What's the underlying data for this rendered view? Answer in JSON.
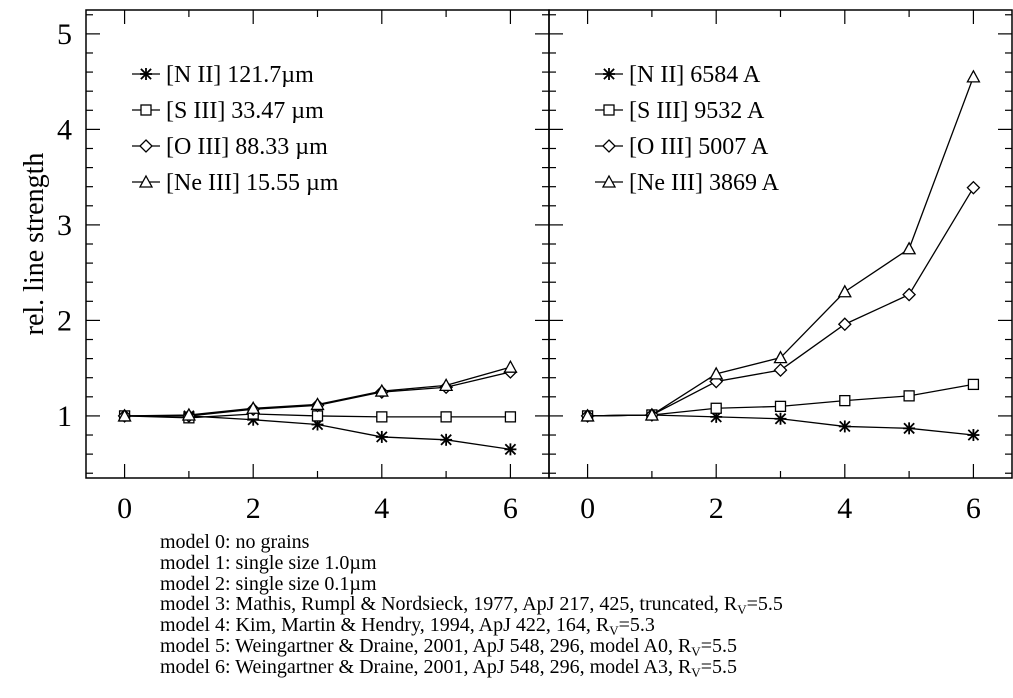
{
  "chart_data": [
    {
      "type": "line",
      "ylabel": "rel. line strength",
      "xlabel": "",
      "xlim": [
        -0.6,
        6.6
      ],
      "ylim": [
        0.35,
        5.25
      ],
      "x_ticks": [
        "0",
        "2",
        "4",
        "6"
      ],
      "y_ticks": [
        "1",
        "2",
        "3",
        "4",
        "5"
      ],
      "legend_position": "top-left",
      "x": [
        0,
        1,
        2,
        3,
        4,
        5,
        6
      ],
      "series": [
        {
          "name": "[N II] 121.7µm",
          "marker": "asterisk",
          "values": [
            1.0,
            1.0,
            0.96,
            0.91,
            0.78,
            0.75,
            0.65
          ]
        },
        {
          "name": "[S III] 33.47 µm",
          "marker": "square",
          "values": [
            1.0,
            0.98,
            1.02,
            1.0,
            0.99,
            0.99,
            0.99
          ]
        },
        {
          "name": "[O III] 88.33 µm",
          "marker": "diamond",
          "values": [
            1.0,
            1.0,
            1.07,
            1.11,
            1.25,
            1.3,
            1.46
          ]
        },
        {
          "name": "[Ne III] 15.55 µm",
          "marker": "triangle",
          "values": [
            1.0,
            1.01,
            1.08,
            1.12,
            1.26,
            1.32,
            1.51
          ]
        }
      ]
    },
    {
      "type": "line",
      "ylabel": "",
      "xlabel": "",
      "xlim": [
        -0.6,
        6.6
      ],
      "ylim": [
        0.35,
        5.25
      ],
      "x_ticks": [
        "0",
        "2",
        "4",
        "6"
      ],
      "y_ticks": [],
      "legend_position": "top-left",
      "x": [
        0,
        1,
        2,
        3,
        4,
        5,
        6
      ],
      "series": [
        {
          "name": "[N II] 6584 A",
          "marker": "asterisk",
          "values": [
            1.0,
            1.01,
            0.99,
            0.97,
            0.89,
            0.87,
            0.8
          ]
        },
        {
          "name": "[S III] 9532 A",
          "marker": "square",
          "values": [
            1.0,
            1.01,
            1.08,
            1.1,
            1.16,
            1.21,
            1.33
          ]
        },
        {
          "name": "[O III] 5007 A",
          "marker": "diamond",
          "values": [
            1.0,
            1.01,
            1.36,
            1.48,
            1.96,
            2.27,
            3.39
          ]
        },
        {
          "name": "[Ne III] 3869 A",
          "marker": "triangle",
          "values": [
            1.0,
            1.01,
            1.44,
            1.61,
            2.3,
            2.75,
            4.55
          ]
        }
      ]
    }
  ],
  "notes": [
    {
      "text": "model 0: no grains",
      "sub": "",
      "tail": ""
    },
    {
      "text": "model 1: single size 1.0µm",
      "sub": "",
      "tail": ""
    },
    {
      "text": "model 2: single size 0.1µm",
      "sub": "",
      "tail": ""
    },
    {
      "text": "model 3: Mathis, Rumpl & Nordsieck, 1977, ApJ 217, 425, truncated, R",
      "sub": "V",
      "tail": "=5.5"
    },
    {
      "text": "model 4: Kim, Martin & Hendry, 1994, ApJ 422, 164, R",
      "sub": "V",
      "tail": "=5.3"
    },
    {
      "text": "model 5: Weingartner & Draine, 2001, ApJ 548, 296, model A0, R",
      "sub": "V",
      "tail": "=5.5"
    },
    {
      "text": "model 6: Weingartner & Draine, 2001, ApJ 548, 296, model A3, R",
      "sub": "V",
      "tail": "=5.5"
    }
  ]
}
